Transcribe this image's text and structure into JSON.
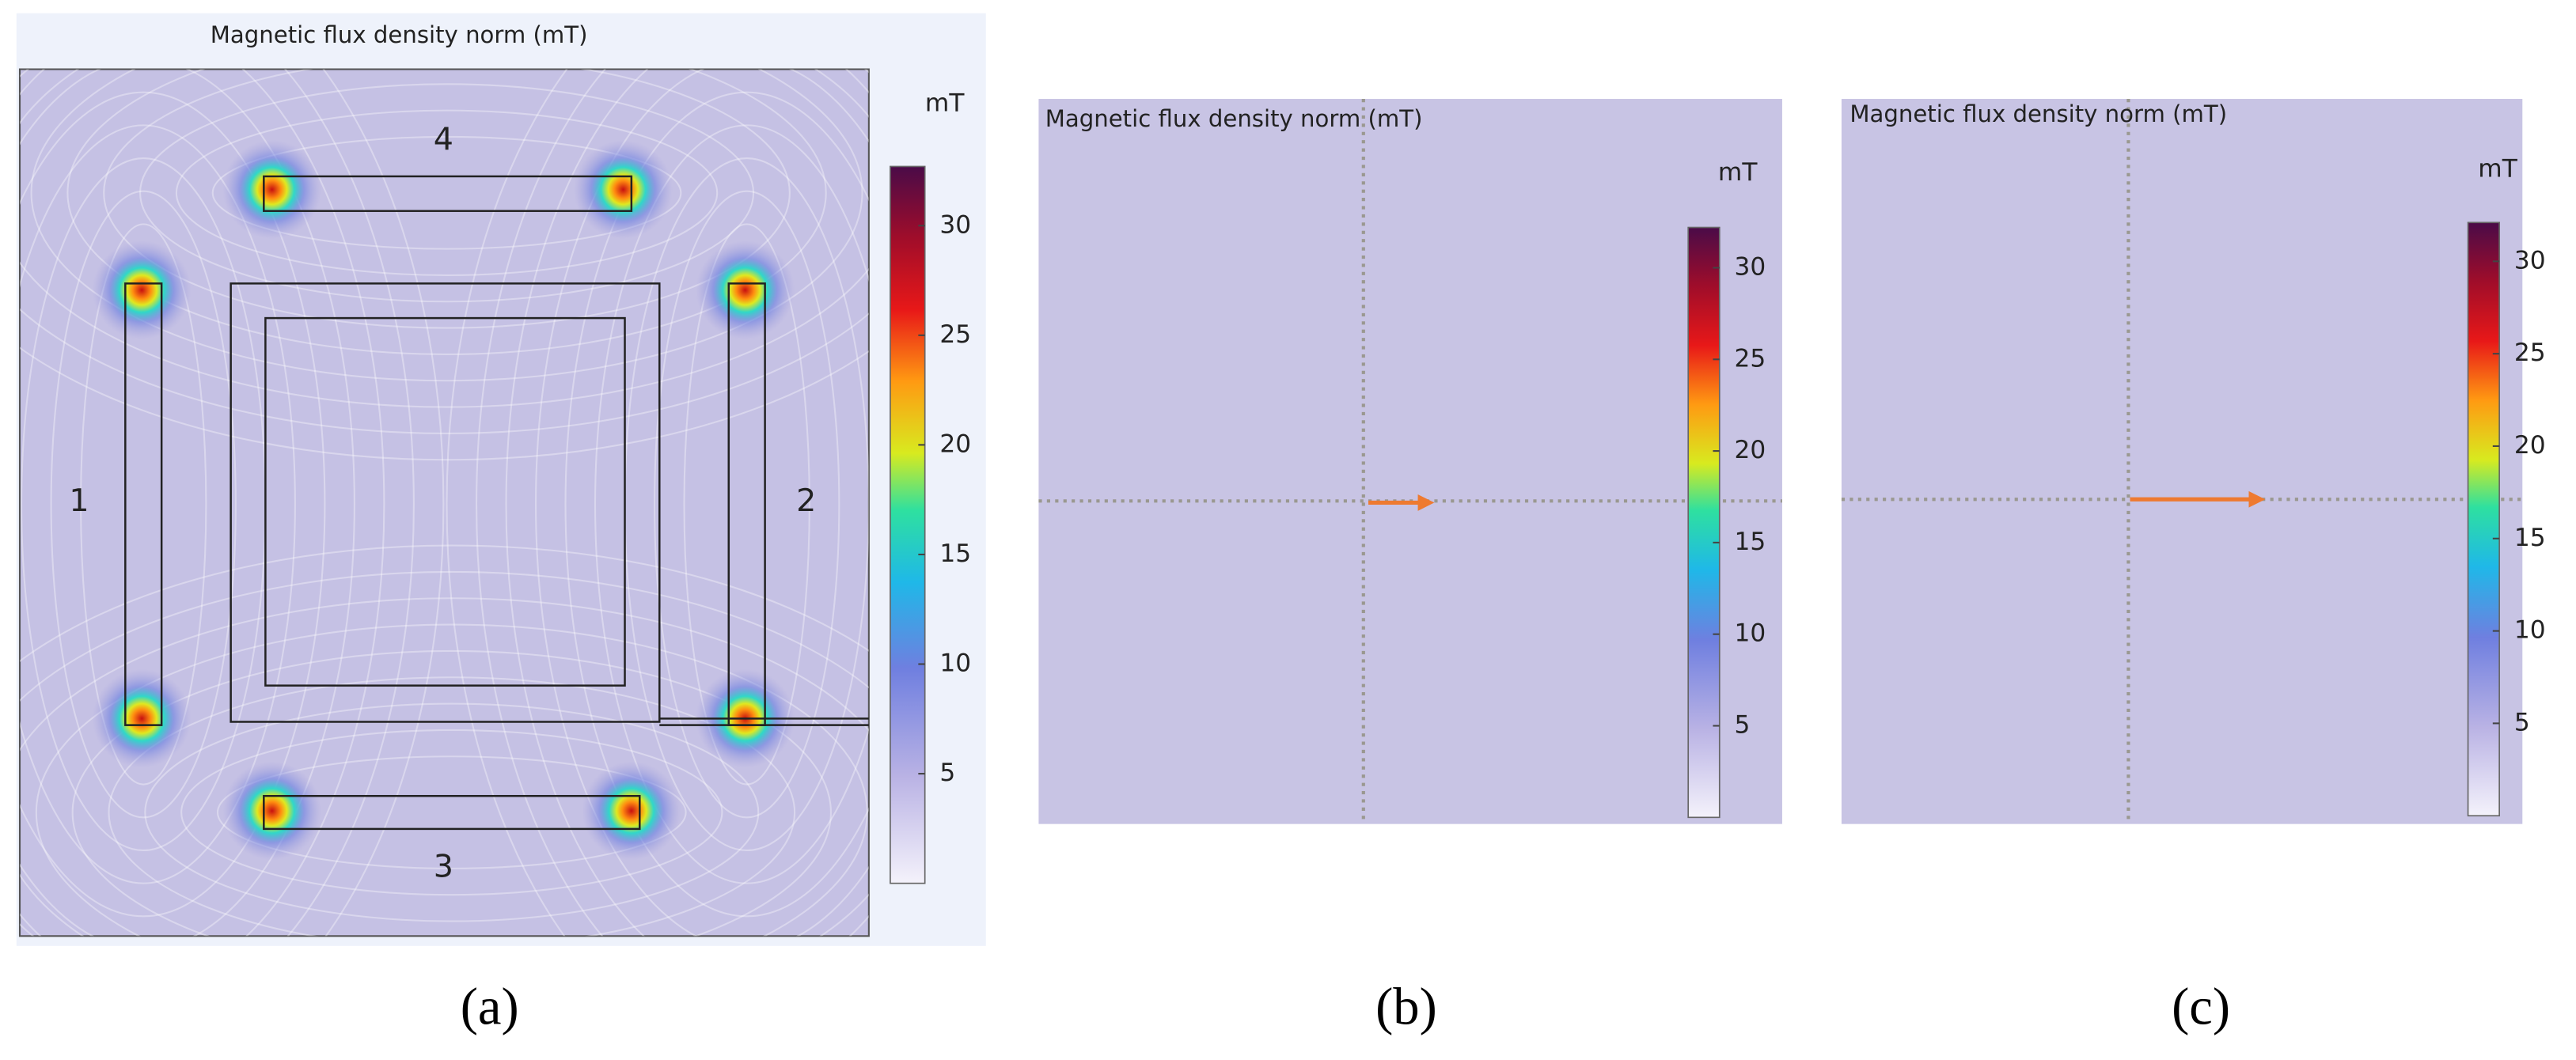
{
  "panels": [
    {
      "title": "Magnetic flux density norm (mT)",
      "unit": "mT",
      "caption": "(a)",
      "colorbar": {
        "lim": [
          0,
          32.7
        ],
        "ticks": [
          5,
          10,
          15,
          20,
          25,
          30
        ]
      },
      "coil_labels": [
        "1",
        "2",
        "3",
        "4"
      ]
    },
    {
      "title": "Magnetic flux density norm (mT)",
      "unit": "mT",
      "caption": "(b)",
      "colorbar": {
        "lim": [
          0,
          32.2
        ],
        "ticks": [
          5,
          10,
          15,
          20,
          25,
          30
        ]
      }
    },
    {
      "title": "Magnetic flux density norm (mT)",
      "unit": "mT",
      "caption": "(c)",
      "colorbar": {
        "lim": [
          0,
          32.1
        ],
        "ticks": [
          5,
          10,
          15,
          20,
          25,
          30
        ]
      }
    }
  ]
}
